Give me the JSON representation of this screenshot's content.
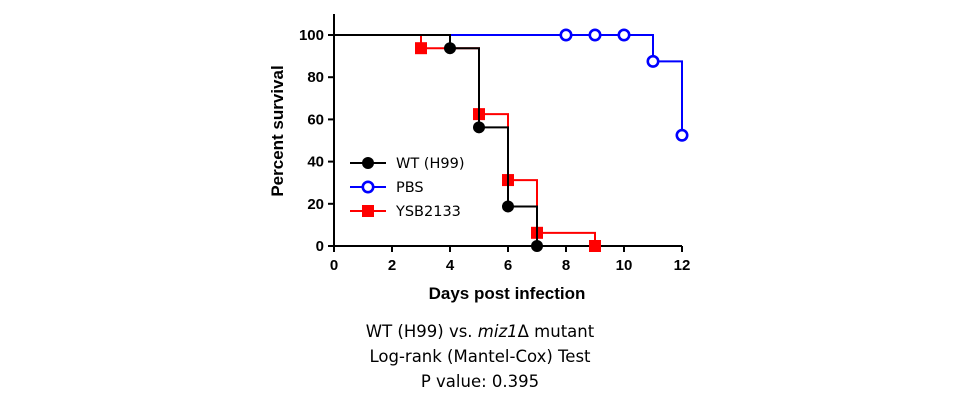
{
  "chart_data": {
    "type": "line",
    "style": "survival-step",
    "xlabel": "Days post infection",
    "ylabel": "Percent survival",
    "xlim": [
      0,
      12
    ],
    "ylim": [
      0,
      100
    ],
    "x_ticks": [
      0,
      2,
      4,
      6,
      8,
      10,
      12
    ],
    "y_ticks": [
      0,
      20,
      40,
      60,
      80,
      100
    ],
    "grid": false,
    "legend_placement": "lower-left",
    "series": [
      {
        "name": "WT (H99)",
        "color": "#000000",
        "marker": "filled-circle",
        "steps": [
          [
            0,
            100
          ],
          [
            4,
            93.75
          ],
          [
            5,
            56.25
          ],
          [
            6,
            18.75
          ],
          [
            7,
            0
          ]
        ],
        "end_x": 7,
        "markers": [
          [
            4,
            93.75
          ],
          [
            5,
            56.25
          ],
          [
            6,
            18.75
          ],
          [
            7,
            0
          ]
        ]
      },
      {
        "name": "PBS",
        "color": "#0000ff",
        "marker": "open-circle",
        "steps": [
          [
            0,
            100
          ],
          [
            11,
            87.5
          ],
          [
            12,
            52.5
          ]
        ],
        "end_x": 12,
        "markers": [
          [
            8,
            100
          ],
          [
            9,
            100
          ],
          [
            10,
            100
          ],
          [
            11,
            87.5
          ],
          [
            12,
            52.5
          ]
        ]
      },
      {
        "name": "YSB2133",
        "color": "#ff0000",
        "marker": "filled-square",
        "steps": [
          [
            0,
            100
          ],
          [
            3,
            93.75
          ],
          [
            5,
            62.5
          ],
          [
            6,
            31.25
          ],
          [
            7,
            6.25
          ],
          [
            9,
            0
          ]
        ],
        "end_x": 9,
        "markers": [
          [
            3,
            93.75
          ],
          [
            5,
            62.5
          ],
          [
            6,
            31.25
          ],
          [
            7,
            6.25
          ],
          [
            9,
            0
          ]
        ]
      }
    ]
  },
  "caption": {
    "line1_prefix": "WT (H99) vs. ",
    "line1_italic": "miz1",
    "line1_suffix": "Δ mutant",
    "line2": "Log-rank (Mantel-Cox) Test",
    "line3": "P value: 0.395"
  }
}
